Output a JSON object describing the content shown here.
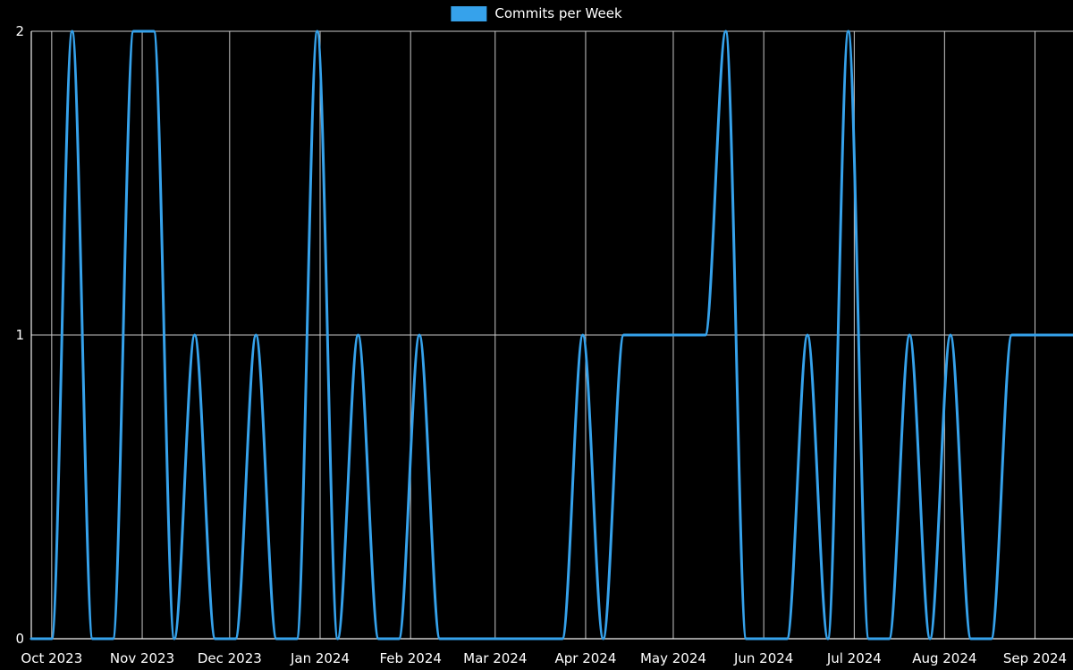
{
  "legend": {
    "label": "Commits per Week",
    "swatch_color": "#36a2eb"
  },
  "chart_data": {
    "type": "line",
    "title": "Commits per Week",
    "legend_position": "top",
    "grid": true,
    "background": "#000000",
    "line_color": "#36a2eb",
    "grid_color": "#c9c9c9",
    "axis_color": "#f2f2f2",
    "text_color": "#ffffff",
    "ylim": [
      0,
      2
    ],
    "y_ticks": [
      "0",
      "1",
      "2"
    ],
    "x_unit": "week",
    "series": [
      {
        "name": "Commits per Week",
        "values": [
          0,
          0,
          2,
          0,
          0,
          2,
          2,
          0,
          1,
          0,
          0,
          1,
          0,
          0,
          2,
          0,
          1,
          0,
          0,
          1,
          0,
          0,
          0,
          0,
          0,
          0,
          0,
          1,
          0,
          1,
          1,
          1,
          1,
          1,
          2,
          0,
          0,
          0,
          1,
          0,
          2,
          0,
          0,
          1,
          0,
          1,
          0,
          0,
          1,
          1,
          1,
          1
        ]
      }
    ],
    "x_ticks": [
      {
        "label": "Oct 2023",
        "week": 1.0
      },
      {
        "label": "Nov 2023",
        "week": 5.43
      },
      {
        "label": "Dec 2023",
        "week": 9.71
      },
      {
        "label": "Jan 2024",
        "week": 14.14
      },
      {
        "label": "Feb 2024",
        "week": 18.57
      },
      {
        "label": "Mar 2024",
        "week": 22.71
      },
      {
        "label": "Apr 2024",
        "week": 27.14
      },
      {
        "label": "May 2024",
        "week": 31.43
      },
      {
        "label": "Jun 2024",
        "week": 35.86
      },
      {
        "label": "Jul 2024",
        "week": 40.29
      },
      {
        "label": "Aug 2024",
        "week": 44.71
      },
      {
        "label": "Sep 2024",
        "week": 49.14
      }
    ]
  }
}
